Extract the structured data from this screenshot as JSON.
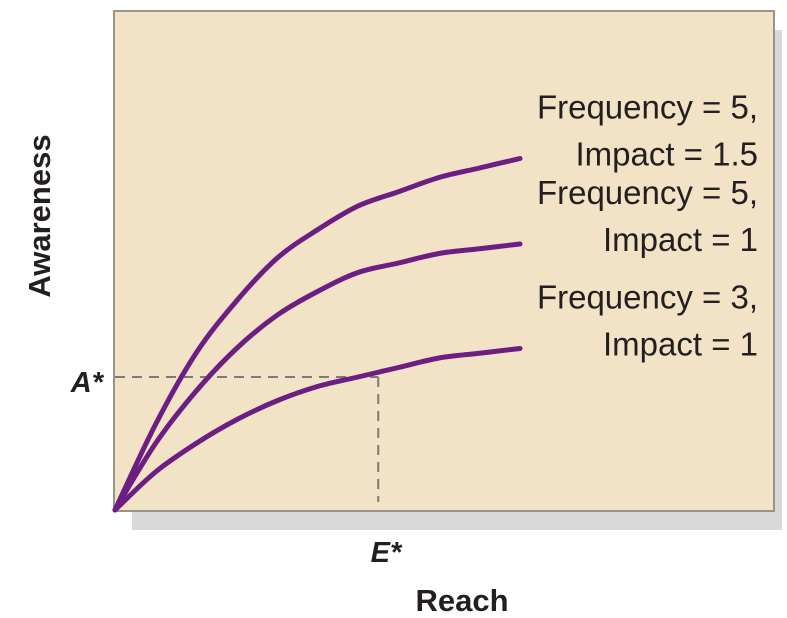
{
  "colors": {
    "panel_fill": "#f2e3c6",
    "panel_border": "#9a938a",
    "panel_shadow": "#d9d9d9",
    "curve": "#6c1e82",
    "guide": "#7a7a7a"
  },
  "chart_data": {
    "type": "line",
    "xlabel": "Reach",
    "ylabel": "Awareness",
    "grid": false,
    "legend": "none",
    "xlim": [
      0,
      1
    ],
    "ylim": [
      0,
      1
    ],
    "series": [
      {
        "label_lines": [
          "Frequency = 5,",
          "Impact = 1.5"
        ],
        "x": [
          0,
          0.1,
          0.2,
          0.3,
          0.4,
          0.5,
          0.6,
          0.7,
          0.8,
          0.9,
          1.0
        ],
        "y": [
          0,
          0.18,
          0.33,
          0.44,
          0.53,
          0.59,
          0.64,
          0.67,
          0.7,
          0.72,
          0.74
        ]
      },
      {
        "label_lines": [
          "Frequency = 5,",
          "Impact = 1"
        ],
        "x": [
          0,
          0.1,
          0.2,
          0.3,
          0.4,
          0.5,
          0.6,
          0.7,
          0.8,
          0.9,
          1.0
        ],
        "y": [
          0,
          0.14,
          0.25,
          0.34,
          0.41,
          0.46,
          0.5,
          0.52,
          0.54,
          0.55,
          0.56
        ]
      },
      {
        "label_lines": [
          "Frequency = 3,",
          "Impact = 1"
        ],
        "x": [
          0,
          0.1,
          0.2,
          0.3,
          0.4,
          0.5,
          0.6,
          0.7,
          0.8,
          0.9,
          1.0
        ],
        "y": [
          0,
          0.08,
          0.14,
          0.19,
          0.23,
          0.26,
          0.28,
          0.3,
          0.32,
          0.33,
          0.34
        ]
      }
    ],
    "annotations": {
      "a_star": {
        "label": "A*",
        "y": 0.28
      },
      "e_star": {
        "label": "E*",
        "x": 0.65
      }
    }
  }
}
